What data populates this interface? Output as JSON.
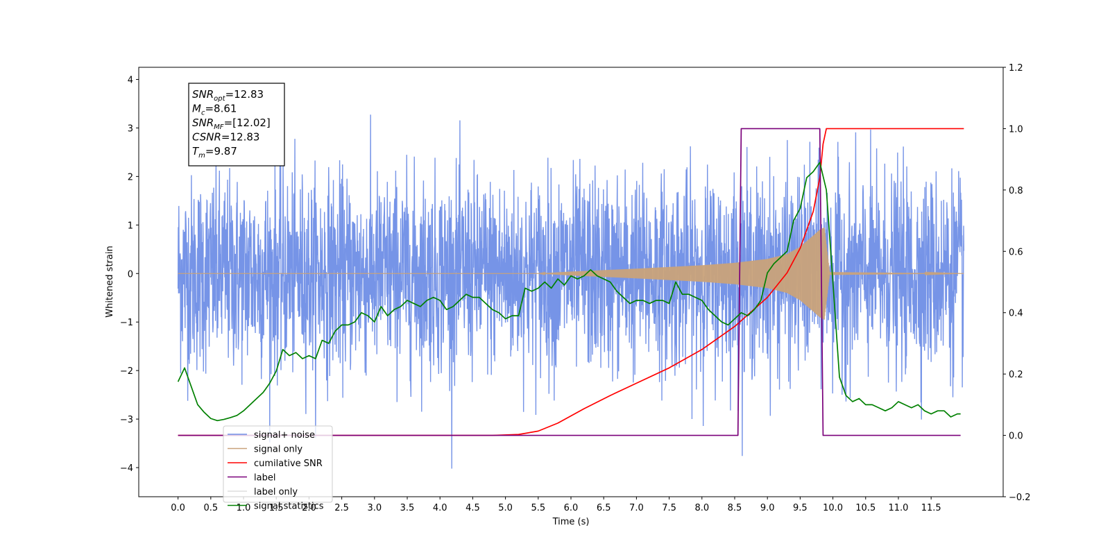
{
  "chart_data": {
    "type": "line",
    "title": "",
    "xlabel": "Time (s)",
    "ylabel": "Whitened strain",
    "xlim": [
      -0.6,
      12.6
    ],
    "ylim": [
      -4.6,
      4.25
    ],
    "y2lim": [
      -0.2,
      1.2
    ],
    "x_ticks": [
      0.0,
      0.5,
      1.0,
      1.5,
      2.0,
      2.5,
      3.0,
      3.5,
      4.0,
      4.5,
      5.0,
      5.5,
      6.0,
      6.5,
      7.0,
      7.5,
      8.0,
      8.5,
      9.0,
      9.5,
      10.0,
      10.5,
      11.0,
      11.5
    ],
    "x_tick_labels": [
      "0.0",
      "0.5",
      "1.0",
      "1.5",
      "2.0",
      "2.5",
      "3.0",
      "3.5",
      "4.0",
      "4.5",
      "5.0",
      "5.5",
      "6.0",
      "6.5",
      "7.0",
      "7.5",
      "8.0",
      "8.5",
      "9.0",
      "9.5",
      "10.0",
      "10.5",
      "11.0",
      "11.5"
    ],
    "y_ticks": [
      -4,
      -3,
      -2,
      -1,
      0,
      1,
      2,
      3,
      4
    ],
    "y_tick_labels": [
      "−4",
      "−3",
      "−2",
      "−1",
      "0",
      "1",
      "2",
      "3",
      "4"
    ],
    "y2_ticks": [
      -0.2,
      0.0,
      0.2,
      0.4,
      0.6,
      0.8,
      1.0,
      1.2
    ],
    "y2_tick_labels": [
      "−0.2",
      "0.0",
      "0.2",
      "0.4",
      "0.6",
      "0.8",
      "1.0",
      "1.2"
    ],
    "grid": false,
    "legend_position": "lower-left",
    "annotation": [
      {
        "sym": "SNR",
        "sub": "opt",
        "val": "=12.83"
      },
      {
        "sym": "M",
        "sub": "c",
        "val": "=8.61"
      },
      {
        "sym": "SNR",
        "sub": "MF",
        "val": "=[12.02]"
      },
      {
        "sym": "CSNR",
        "sub": "",
        "val": "=12.83"
      },
      {
        "sym": "T",
        "sub": "m",
        "val": "=9.87"
      }
    ],
    "series": [
      {
        "name": "signal+ noise",
        "axis": "left",
        "color": "#6f8ee6",
        "noise": {
          "x_start": 0.0,
          "x_end": 12.0,
          "typical_range": [
            -1.6,
            1.6
          ],
          "extremes": [
            -4.1,
            3.85
          ]
        }
      },
      {
        "name": "signal only",
        "axis": "left",
        "color": "#c9a27a",
        "envelope": {
          "x": [
            0.0,
            5.5,
            6.0,
            7.0,
            8.0,
            8.5,
            9.0,
            9.3,
            9.5,
            9.7,
            9.8,
            9.87,
            9.95,
            12.0
          ],
          "amplitude": [
            0.0,
            0.0,
            0.04,
            0.1,
            0.17,
            0.22,
            0.3,
            0.4,
            0.55,
            0.78,
            0.9,
            0.95,
            0.03,
            0.0
          ]
        }
      },
      {
        "name": "cumilative SNR",
        "axis": "right",
        "color": "#ff0000",
        "x": [
          0.0,
          4.8,
          5.2,
          5.5,
          5.8,
          6.2,
          6.6,
          7.0,
          7.5,
          8.0,
          8.5,
          9.0,
          9.3,
          9.5,
          9.7,
          9.8,
          9.85,
          9.9,
          12.0
        ],
        "values": [
          0.0,
          0.0,
          0.003,
          0.014,
          0.04,
          0.087,
          0.13,
          0.17,
          0.22,
          0.28,
          0.355,
          0.45,
          0.53,
          0.61,
          0.73,
          0.84,
          0.95,
          1.0,
          1.0
        ]
      },
      {
        "name": "label",
        "axis": "right",
        "color": "#7a007a",
        "x": [
          0.0,
          8.55,
          8.6,
          9.8,
          9.85,
          11.95
        ],
        "values": [
          0.0,
          0.0,
          1.0,
          1.0,
          0.0,
          0.0
        ]
      },
      {
        "name": "label only",
        "axis": "right",
        "color": "#e0e0e0",
        "x": [],
        "values": []
      },
      {
        "name": "signal statistics",
        "axis": "right",
        "color": "#008000",
        "x": [
          0.0,
          0.1,
          0.2,
          0.3,
          0.4,
          0.5,
          0.6,
          0.7,
          0.8,
          0.9,
          1.0,
          1.1,
          1.2,
          1.3,
          1.4,
          1.5,
          1.6,
          1.7,
          1.8,
          1.9,
          2.0,
          2.1,
          2.2,
          2.3,
          2.4,
          2.5,
          2.6,
          2.7,
          2.8,
          2.9,
          3.0,
          3.1,
          3.2,
          3.3,
          3.4,
          3.5,
          3.6,
          3.7,
          3.8,
          3.9,
          4.0,
          4.1,
          4.2,
          4.3,
          4.4,
          4.5,
          4.6,
          4.7,
          4.8,
          4.9,
          5.0,
          5.1,
          5.2,
          5.3,
          5.4,
          5.5,
          5.6,
          5.7,
          5.8,
          5.9,
          6.0,
          6.1,
          6.2,
          6.3,
          6.4,
          6.5,
          6.6,
          6.7,
          6.8,
          6.9,
          7.0,
          7.1,
          7.2,
          7.3,
          7.4,
          7.5,
          7.6,
          7.7,
          7.8,
          7.9,
          8.0,
          8.1,
          8.2,
          8.3,
          8.4,
          8.5,
          8.6,
          8.7,
          8.8,
          8.9,
          9.0,
          9.1,
          9.2,
          9.3,
          9.4,
          9.5,
          9.6,
          9.7,
          9.8,
          9.9,
          10.0,
          10.1,
          10.2,
          10.3,
          10.4,
          10.5,
          10.6,
          10.7,
          10.8,
          10.9,
          11.0,
          11.1,
          11.2,
          11.3,
          11.4,
          11.5,
          11.6,
          11.7,
          11.8,
          11.9,
          11.95
        ],
        "values": [
          0.175,
          0.22,
          0.16,
          0.1,
          0.075,
          0.055,
          0.048,
          0.052,
          0.058,
          0.065,
          0.08,
          0.1,
          0.12,
          0.14,
          0.17,
          0.21,
          0.28,
          0.26,
          0.27,
          0.25,
          0.26,
          0.25,
          0.31,
          0.3,
          0.34,
          0.36,
          0.36,
          0.37,
          0.4,
          0.39,
          0.37,
          0.42,
          0.39,
          0.41,
          0.42,
          0.44,
          0.43,
          0.42,
          0.44,
          0.45,
          0.44,
          0.41,
          0.42,
          0.44,
          0.46,
          0.45,
          0.45,
          0.43,
          0.41,
          0.4,
          0.38,
          0.39,
          0.39,
          0.48,
          0.47,
          0.48,
          0.5,
          0.48,
          0.51,
          0.49,
          0.52,
          0.51,
          0.52,
          0.54,
          0.52,
          0.51,
          0.5,
          0.47,
          0.45,
          0.43,
          0.44,
          0.44,
          0.43,
          0.44,
          0.44,
          0.43,
          0.5,
          0.46,
          0.46,
          0.45,
          0.44,
          0.41,
          0.39,
          0.37,
          0.36,
          0.38,
          0.4,
          0.39,
          0.41,
          0.44,
          0.53,
          0.56,
          0.58,
          0.6,
          0.7,
          0.74,
          0.84,
          0.86,
          0.89,
          0.8,
          0.5,
          0.19,
          0.13,
          0.11,
          0.12,
          0.1,
          0.1,
          0.09,
          0.08,
          0.09,
          0.11,
          0.1,
          0.09,
          0.1,
          0.08,
          0.07,
          0.08,
          0.08,
          0.06,
          0.07,
          0.07
        ]
      }
    ]
  }
}
